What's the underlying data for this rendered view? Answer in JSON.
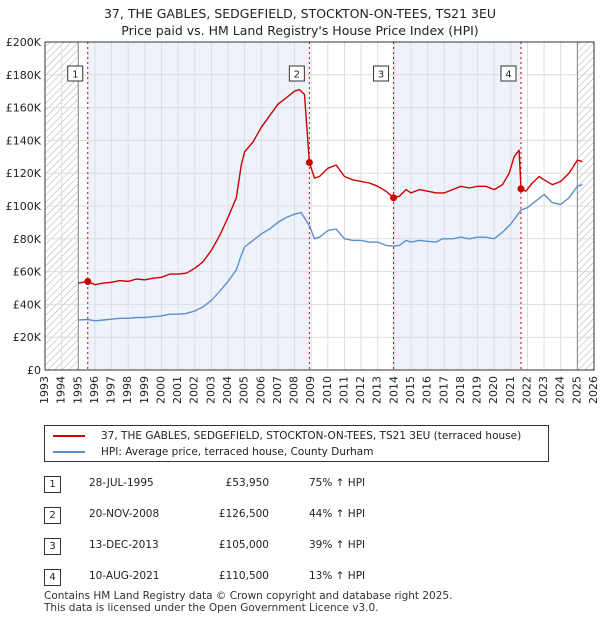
{
  "title_line1": "37, THE GABLES, SEDGEFIELD, STOCKTON-ON-TEES, TS21 3EU",
  "title_line2": "Price paid vs. HM Land Registry's House Price Index (HPI)",
  "colors": {
    "property": "#cc0000",
    "hpi": "#5b8fd0",
    "hatch": "#aaaaaa",
    "sale_line": "#cc0000",
    "shade": "#eef3fb"
  },
  "legend": {
    "property": "37, THE GABLES, SEDGEFIELD, STOCKTON-ON-TEES, TS21 3EU (terraced house)",
    "hpi": "HPI: Average price, terraced house, County Durham"
  },
  "sales": [
    {
      "num": "1",
      "date": "28-JUL-1995",
      "price": "£53,950",
      "hpi": "75% ↑ HPI"
    },
    {
      "num": "2",
      "date": "20-NOV-2008",
      "price": "£126,500",
      "hpi": "44% ↑ HPI"
    },
    {
      "num": "3",
      "date": "13-DEC-2013",
      "price": "£105,000",
      "hpi": "39% ↑ HPI"
    },
    {
      "num": "4",
      "date": "10-AUG-2021",
      "price": "£110,500",
      "hpi": "13% ↑ HPI"
    }
  ],
  "footer": {
    "line1": "Contains HM Land Registry data © Crown copyright and database right 2025.",
    "line2": "This data is licensed under the Open Government Licence v3.0."
  },
  "chart_data": {
    "type": "line",
    "xlim": [
      1993,
      2026
    ],
    "ylim": [
      0,
      200000
    ],
    "hatched_before": 1995.0,
    "hatched_after": 2025.0,
    "x_ticks": [
      "1993",
      "1994",
      "1995",
      "1996",
      "1997",
      "1998",
      "1999",
      "2000",
      "2001",
      "2002",
      "2003",
      "2004",
      "2005",
      "2006",
      "2007",
      "2008",
      "2009",
      "2010",
      "2011",
      "2012",
      "2013",
      "2014",
      "2015",
      "2016",
      "2017",
      "2018",
      "2019",
      "2020",
      "2021",
      "2022",
      "2023",
      "2024",
      "2025",
      "2026"
    ],
    "y_ticks": [
      {
        "v": 0,
        "label": "£0"
      },
      {
        "v": 20000,
        "label": "£20K"
      },
      {
        "v": 40000,
        "label": "£40K"
      },
      {
        "v": 60000,
        "label": "£60K"
      },
      {
        "v": 80000,
        "label": "£80K"
      },
      {
        "v": 100000,
        "label": "£100K"
      },
      {
        "v": 120000,
        "label": "£120K"
      },
      {
        "v": 140000,
        "label": "£140K"
      },
      {
        "v": 160000,
        "label": "£160K"
      },
      {
        "v": 180000,
        "label": "£180K"
      },
      {
        "v": 200000,
        "label": "£200K"
      }
    ],
    "sale_markers": [
      {
        "num": "1",
        "x": 1995.57,
        "y": 53950
      },
      {
        "num": "2",
        "x": 2008.89,
        "y": 126500
      },
      {
        "num": "3",
        "x": 2013.95,
        "y": 105000
      },
      {
        "num": "4",
        "x": 2021.61,
        "y": 110500
      }
    ],
    "series": [
      {
        "name": "37, THE GABLES, SEDGEFIELD, STOCKTON-ON-TEES, TS21 3EU (terraced house)",
        "points": [
          [
            1995.0,
            53000
          ],
          [
            1995.57,
            53950
          ],
          [
            1996.0,
            52000
          ],
          [
            1996.5,
            53000
          ],
          [
            1997.0,
            53500
          ],
          [
            1997.5,
            54500
          ],
          [
            1998.0,
            54000
          ],
          [
            1998.5,
            55500
          ],
          [
            1999.0,
            55000
          ],
          [
            1999.5,
            56000
          ],
          [
            2000.0,
            56500
          ],
          [
            2000.5,
            58500
          ],
          [
            2001.0,
            58500
          ],
          [
            2001.5,
            59000
          ],
          [
            2002.0,
            62000
          ],
          [
            2002.5,
            66000
          ],
          [
            2003.0,
            73000
          ],
          [
            2003.5,
            82000
          ],
          [
            2004.0,
            93000
          ],
          [
            2004.5,
            105000
          ],
          [
            2004.8,
            125000
          ],
          [
            2005.0,
            133000
          ],
          [
            2005.5,
            139000
          ],
          [
            2006.0,
            148000
          ],
          [
            2006.5,
            155000
          ],
          [
            2007.0,
            162000
          ],
          [
            2007.5,
            166000
          ],
          [
            2008.0,
            170000
          ],
          [
            2008.3,
            171000
          ],
          [
            2008.6,
            168000
          ],
          [
            2008.89,
            126500
          ],
          [
            2009.2,
            117000
          ],
          [
            2009.5,
            118000
          ],
          [
            2010.0,
            123000
          ],
          [
            2010.5,
            125000
          ],
          [
            2011.0,
            118000
          ],
          [
            2011.5,
            116000
          ],
          [
            2012.0,
            115000
          ],
          [
            2012.5,
            114000
          ],
          [
            2013.0,
            112000
          ],
          [
            2013.5,
            109000
          ],
          [
            2013.95,
            105000
          ],
          [
            2014.3,
            106000
          ],
          [
            2014.7,
            110000
          ],
          [
            2015.0,
            108000
          ],
          [
            2015.5,
            110000
          ],
          [
            2016.0,
            109000
          ],
          [
            2016.5,
            108000
          ],
          [
            2017.0,
            108000
          ],
          [
            2017.5,
            110000
          ],
          [
            2018.0,
            112000
          ],
          [
            2018.5,
            111000
          ],
          [
            2019.0,
            112000
          ],
          [
            2019.5,
            112000
          ],
          [
            2020.0,
            110000
          ],
          [
            2020.5,
            113000
          ],
          [
            2020.9,
            120000
          ],
          [
            2021.2,
            130000
          ],
          [
            2021.5,
            134000
          ],
          [
            2021.61,
            110500
          ],
          [
            2021.9,
            109000
          ],
          [
            2022.3,
            114000
          ],
          [
            2022.7,
            118000
          ],
          [
            2023.0,
            116000
          ],
          [
            2023.5,
            113000
          ],
          [
            2024.0,
            115000
          ],
          [
            2024.5,
            120000
          ],
          [
            2025.0,
            128000
          ],
          [
            2025.3,
            127000
          ]
        ]
      },
      {
        "name": "HPI: Average price, terraced house, County Durham",
        "points": [
          [
            1995.0,
            30500
          ],
          [
            1995.57,
            30800
          ],
          [
            1996.0,
            30000
          ],
          [
            1996.5,
            30500
          ],
          [
            1997.0,
            31000
          ],
          [
            1997.5,
            31500
          ],
          [
            1998.0,
            31500
          ],
          [
            1998.5,
            32000
          ],
          [
            1999.0,
            32000
          ],
          [
            1999.5,
            32500
          ],
          [
            2000.0,
            33000
          ],
          [
            2000.5,
            34000
          ],
          [
            2001.0,
            34000
          ],
          [
            2001.5,
            34500
          ],
          [
            2002.0,
            36000
          ],
          [
            2002.5,
            38500
          ],
          [
            2003.0,
            42500
          ],
          [
            2003.5,
            48000
          ],
          [
            2004.0,
            54000
          ],
          [
            2004.5,
            61000
          ],
          [
            2004.8,
            70000
          ],
          [
            2005.0,
            75000
          ],
          [
            2005.5,
            79000
          ],
          [
            2006.0,
            83000
          ],
          [
            2006.5,
            86000
          ],
          [
            2007.0,
            90000
          ],
          [
            2007.5,
            93000
          ],
          [
            2008.0,
            95000
          ],
          [
            2008.4,
            96000
          ],
          [
            2008.89,
            88000
          ],
          [
            2009.2,
            80000
          ],
          [
            2009.5,
            81000
          ],
          [
            2010.0,
            85000
          ],
          [
            2010.5,
            86000
          ],
          [
            2011.0,
            80000
          ],
          [
            2011.5,
            79000
          ],
          [
            2012.0,
            79000
          ],
          [
            2012.5,
            78000
          ],
          [
            2013.0,
            78000
          ],
          [
            2013.5,
            76000
          ],
          [
            2013.95,
            75500
          ],
          [
            2014.3,
            76000
          ],
          [
            2014.7,
            79000
          ],
          [
            2015.0,
            78000
          ],
          [
            2015.5,
            79000
          ],
          [
            2016.0,
            78500
          ],
          [
            2016.5,
            78000
          ],
          [
            2016.9,
            80000
          ],
          [
            2017.5,
            80000
          ],
          [
            2018.0,
            81000
          ],
          [
            2018.5,
            80000
          ],
          [
            2019.0,
            81000
          ],
          [
            2019.5,
            81000
          ],
          [
            2020.0,
            80000
          ],
          [
            2020.5,
            84000
          ],
          [
            2021.0,
            89000
          ],
          [
            2021.61,
            97500
          ],
          [
            2022.0,
            99000
          ],
          [
            2022.5,
            103000
          ],
          [
            2023.0,
            107000
          ],
          [
            2023.5,
            102000
          ],
          [
            2024.0,
            101000
          ],
          [
            2024.5,
            105000
          ],
          [
            2025.0,
            112000
          ],
          [
            2025.3,
            113000
          ]
        ]
      }
    ]
  }
}
